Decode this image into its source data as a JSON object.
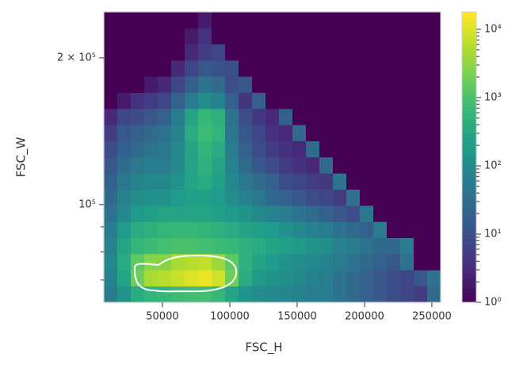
{
  "chart_data": {
    "type": "hist2d",
    "xlabel": "FSC_H",
    "ylabel": "FSC_W",
    "xlim": [
      6500,
      256500
    ],
    "ylim": [
      63000,
      248500
    ],
    "ylog": true,
    "xticks": [
      50000,
      100000,
      150000,
      200000,
      250000
    ],
    "yticks": [
      {
        "value": 100000,
        "label": "10⁵"
      },
      {
        "value": 200000,
        "label": "2 × 10⁵"
      }
    ],
    "yminorticks": [
      70000,
      80000,
      90000
    ],
    "colormap": "viridis",
    "clim": [
      1,
      18000
    ],
    "clog": true,
    "cticks": [
      {
        "value": 1,
        "label": "10⁰"
      },
      {
        "value": 10,
        "label": "10¹"
      },
      {
        "value": 100,
        "label": "10²"
      },
      {
        "value": 1000,
        "label": "10³"
      },
      {
        "value": 10000,
        "label": "10⁴"
      }
    ],
    "cminorticks": [
      2,
      3,
      4,
      5,
      6,
      7,
      8,
      9,
      20,
      30,
      40,
      50,
      60,
      70,
      80,
      90,
      200,
      300,
      400,
      500,
      600,
      700,
      800,
      900,
      2000,
      3000,
      4000,
      5000,
      6000,
      7000,
      8000,
      9000
    ],
    "xbins": [
      6500,
      16500,
      26500,
      36500,
      46500,
      56500,
      66500,
      76500,
      86500,
      96500,
      106500,
      116500,
      126500,
      136500,
      146500,
      156500,
      166500,
      176500,
      186500,
      196500,
      206500,
      216500,
      226500,
      236500,
      246500,
      256500
    ],
    "ybins": [
      63000,
      67991,
      73377,
      79190,
      85463,
      92233,
      99540,
      107426,
      115936,
      125121,
      135033,
      145730,
      157275,
      169734,
      183180,
      197692,
      213353,
      230254,
      248500
    ],
    "counts": [
      [
        60,
        150,
        400,
        600,
        700,
        800,
        900,
        900,
        700,
        300,
        150,
        120,
        100,
        90,
        80,
        70,
        60,
        40,
        30,
        20,
        15,
        10,
        8,
        6,
        30
      ],
      [
        80,
        300,
        2000,
        5000,
        6000,
        8000,
        11000,
        14000,
        9000,
        2000,
        400,
        200,
        150,
        120,
        100,
        80,
        60,
        40,
        30,
        20,
        15,
        10,
        8,
        15,
        40
      ],
      [
        100,
        400,
        1500,
        3000,
        3000,
        5000,
        6000,
        7000,
        4000,
        1500,
        500,
        300,
        200,
        150,
        120,
        100,
        80,
        60,
        40,
        30,
        20,
        15,
        40,
        0,
        0
      ],
      [
        80,
        300,
        600,
        800,
        900,
        1000,
        1000,
        900,
        800,
        700,
        500,
        400,
        300,
        250,
        200,
        150,
        120,
        80,
        60,
        40,
        30,
        25,
        60,
        0,
        0
      ],
      [
        60,
        200,
        400,
        500,
        600,
        700,
        700,
        600,
        500,
        400,
        300,
        250,
        200,
        150,
        100,
        80,
        60,
        40,
        30,
        20,
        60,
        0,
        0,
        0,
        0
      ],
      [
        40,
        100,
        200,
        250,
        300,
        300,
        300,
        300,
        250,
        200,
        150,
        100,
        80,
        60,
        40,
        30,
        20,
        15,
        10,
        50,
        0,
        0,
        0,
        0,
        0
      ],
      [
        30,
        80,
        120,
        150,
        150,
        200,
        250,
        250,
        200,
        120,
        80,
        50,
        30,
        20,
        15,
        10,
        8,
        6,
        40,
        0,
        0,
        0,
        0,
        0,
        0
      ],
      [
        20,
        50,
        80,
        100,
        100,
        150,
        300,
        400,
        250,
        100,
        50,
        30,
        20,
        10,
        8,
        6,
        5,
        40,
        0,
        0,
        0,
        0,
        0,
        0,
        0
      ],
      [
        15,
        30,
        50,
        60,
        60,
        100,
        300,
        500,
        300,
        80,
        30,
        15,
        10,
        6,
        4,
        3,
        30,
        0,
        0,
        0,
        0,
        0,
        0,
        0,
        0
      ],
      [
        10,
        20,
        30,
        40,
        50,
        100,
        300,
        600,
        400,
        60,
        20,
        10,
        6,
        4,
        3,
        30,
        0,
        0,
        0,
        0,
        0,
        0,
        0,
        0,
        0
      ],
      [
        6,
        15,
        20,
        30,
        40,
        80,
        400,
        800,
        600,
        50,
        15,
        8,
        4,
        3,
        25,
        0,
        0,
        0,
        0,
        0,
        0,
        0,
        0,
        0,
        0
      ],
      [
        3,
        8,
        10,
        15,
        20,
        60,
        300,
        700,
        500,
        40,
        10,
        5,
        3,
        20,
        0,
        0,
        0,
        0,
        0,
        0,
        0,
        0,
        0,
        0,
        0
      ],
      [
        0,
        2,
        4,
        6,
        8,
        20,
        60,
        120,
        80,
        20,
        5,
        20,
        0,
        0,
        0,
        0,
        0,
        0,
        0,
        0,
        0,
        0,
        0,
        0,
        0
      ],
      [
        0,
        0,
        1,
        2,
        3,
        8,
        20,
        40,
        30,
        10,
        15,
        0,
        0,
        0,
        0,
        0,
        0,
        0,
        0,
        0,
        0,
        0,
        0,
        0,
        0
      ],
      [
        0,
        0,
        0,
        0,
        1,
        3,
        8,
        15,
        12,
        10,
        0,
        0,
        0,
        0,
        0,
        0,
        0,
        0,
        0,
        0,
        0,
        0,
        0,
        0,
        0
      ],
      [
        0,
        0,
        0,
        0,
        0,
        1,
        3,
        6,
        8,
        0,
        0,
        0,
        0,
        0,
        0,
        0,
        0,
        0,
        0,
        0,
        0,
        0,
        0,
        0,
        0
      ],
      [
        0,
        0,
        0,
        0,
        0,
        0,
        2,
        4,
        0,
        0,
        0,
        0,
        0,
        0,
        0,
        0,
        0,
        0,
        0,
        0,
        0,
        0,
        0,
        0,
        0
      ],
      [
        0,
        0,
        0,
        0,
        0,
        0,
        0,
        2,
        0,
        0,
        0,
        0,
        0,
        0,
        0,
        0,
        0,
        0,
        0,
        0,
        0,
        0,
        0,
        0,
        0
      ]
    ]
  }
}
